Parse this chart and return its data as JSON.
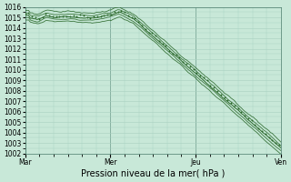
{
  "xlabel": "Pression niveau de la mer( hPa )",
  "bg_color": "#c8e8d8",
  "grid_color": "#a8d0c0",
  "line_color": "#2d6a2d",
  "ylim": [
    1002,
    1016
  ],
  "xlim": [
    0,
    3
  ],
  "yticks": [
    1002,
    1003,
    1004,
    1005,
    1006,
    1007,
    1008,
    1009,
    1010,
    1011,
    1012,
    1013,
    1014,
    1015,
    1016
  ],
  "day_labels": [
    "Mar",
    "Mer",
    "Jeu",
    "Ven"
  ],
  "day_positions": [
    0,
    1,
    2,
    3
  ],
  "tick_fontsize": 5.5,
  "label_fontsize": 7,
  "figsize": [
    3.2,
    2.0
  ],
  "dpi": 100
}
